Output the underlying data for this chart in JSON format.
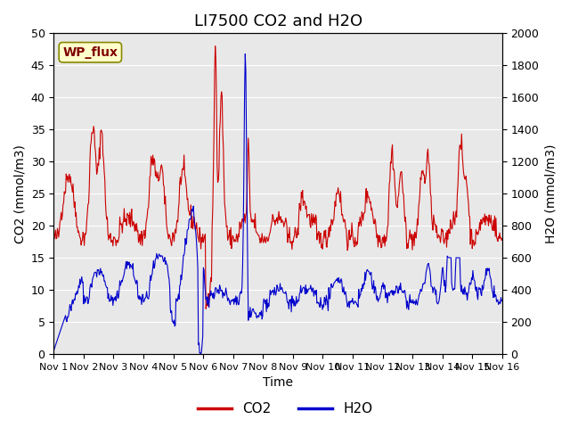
{
  "title": "LI7500 CO2 and H2O",
  "xlabel": "Time",
  "ylabel_left": "CO2 (mmol/m3)",
  "ylabel_right": "H2O (mmol/m3)",
  "site_label": "WP_flux",
  "ylim_left": [
    0,
    50
  ],
  "ylim_right": [
    0,
    2000
  ],
  "yticks_left": [
    0,
    5,
    10,
    15,
    20,
    25,
    30,
    35,
    40,
    45,
    50
  ],
  "yticks_right": [
    0,
    200,
    400,
    600,
    800,
    1000,
    1200,
    1400,
    1600,
    1800,
    2000
  ],
  "xtick_labels": [
    "Nov 1",
    "Nov 2",
    "Nov 3",
    "Nov 4",
    "Nov 5",
    "Nov 6",
    "Nov 7",
    "Nov 8",
    "Nov 9",
    "Nov 10",
    "Nov 11",
    "Nov 12",
    "Nov 13",
    "Nov 14",
    "Nov 15",
    "Nov 16"
  ],
  "co2_color": "#cc0000",
  "h2o_color": "#0000cc",
  "background_color": "#e8e8e8",
  "plot_bg_color": "#e8e8e8",
  "title_fontsize": 13,
  "label_fontsize": 10,
  "tick_fontsize": 9,
  "legend_fontsize": 11,
  "site_label_color": "#800000",
  "site_label_bg": "#ffffcc",
  "site_label_border": "#888800"
}
